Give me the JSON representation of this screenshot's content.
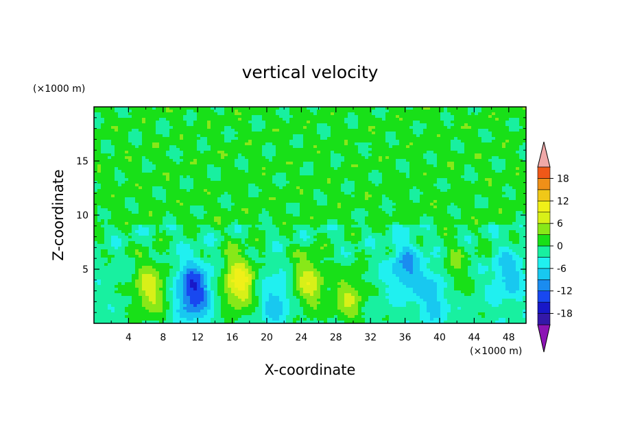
{
  "chart_data": {
    "type": "heatmap",
    "title": "vertical velocity",
    "xlabel": "X-coordinate",
    "ylabel": "Z-coordinate",
    "x_unit": "(×1000 m)",
    "y_unit": "(×1000 m)",
    "xlim": [
      0,
      50
    ],
    "ylim": [
      0,
      20
    ],
    "x_ticks": [
      "4",
      "8",
      "12",
      "16",
      "20",
      "24",
      "28",
      "32",
      "36",
      "40",
      "44",
      "48"
    ],
    "x_tick_values": [
      4,
      8,
      12,
      16,
      20,
      24,
      28,
      32,
      36,
      40,
      44,
      48
    ],
    "y_ticks": [
      "5",
      "10",
      "15"
    ],
    "y_tick_values": [
      5,
      10,
      15
    ],
    "colorbar": {
      "labels": [
        "18",
        "12",
        "6",
        "0",
        "-6",
        "-12",
        "-18"
      ],
      "label_values": [
        18,
        12,
        6,
        0,
        -6,
        -12,
        -18
      ],
      "levels": [
        -21,
        -18,
        -15,
        -12,
        -9,
        -6,
        -3,
        0,
        3,
        6,
        9,
        12,
        15,
        18,
        21
      ],
      "colors": [
        "#7a1aa8",
        "#3418a8",
        "#1818c8",
        "#1848f0",
        "#1a8cf0",
        "#18c8f0",
        "#20f0f0",
        "#18f0a0",
        "#18e018",
        "#88e818",
        "#d8f018",
        "#f0f018",
        "#f0c818",
        "#f09018",
        "#f05818",
        "#e81818"
      ],
      "extend_low_color": "#8c14b4",
      "extend_high_color": "#f0a8a8"
    },
    "features": [
      {
        "x": 6.5,
        "z": 3.2,
        "value": 9
      },
      {
        "x": 11.5,
        "z": 3.0,
        "value": -14
      },
      {
        "x": 16.8,
        "z": 3.8,
        "value": 12
      },
      {
        "x": 21.0,
        "z": 2.0,
        "value": -6
      },
      {
        "x": 24.8,
        "z": 3.8,
        "value": 9
      },
      {
        "x": 29.5,
        "z": 2.3,
        "value": 7
      },
      {
        "x": 36.0,
        "z": 5.2,
        "value": -8
      },
      {
        "x": 39.5,
        "z": 2.7,
        "value": -7
      },
      {
        "x": 41.5,
        "z": 4.8,
        "value": 5
      },
      {
        "x": 48.0,
        "z": 4.5,
        "value": -6
      }
    ]
  }
}
